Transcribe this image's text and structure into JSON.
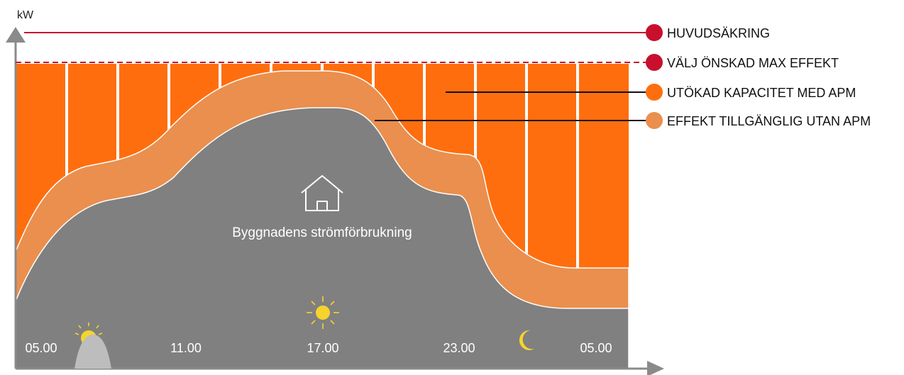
{
  "axis": {
    "y_label": "kW"
  },
  "legend": [
    {
      "label": "HUVUDSÄKRING",
      "color": "#c8102e"
    },
    {
      "label": "VÄLJ ÖNSKAD MAX EFFEKT",
      "color": "#c8102e"
    },
    {
      "label": "UTÖKAD KAPACITET MED APM",
      "color": "#ff6e0e"
    },
    {
      "label": "EFFEKT TILLGÄNGLIG UTAN APM",
      "color": "#ea8f4e"
    }
  ],
  "building": {
    "label": "Byggnadens strömförbrukning",
    "icon": "house-icon"
  },
  "time_labels": [
    "05.00",
    "11.00",
    "17.00",
    "23.00",
    "05.00"
  ],
  "time_icons": [
    "sunrise-icon",
    "sun-icon",
    "moon-icon"
  ],
  "colors": {
    "main_fuse": "#c8102e",
    "max_effect": "#c8102e",
    "extended_capacity": "#ff6e0e",
    "available_without_apm": "#ea8f4e",
    "building_consumption": "#808080",
    "axis": "#8a8a8a",
    "sun": "#f6d32d"
  }
}
